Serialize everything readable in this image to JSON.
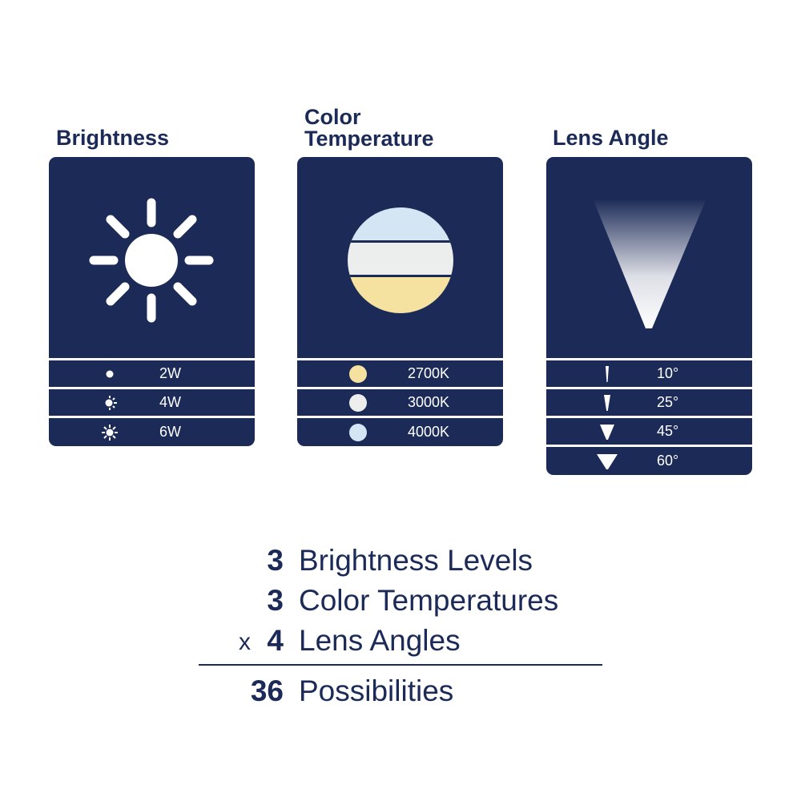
{
  "brightness": {
    "title": "Brightness",
    "icon": "sun-icon",
    "rows": [
      {
        "icon": "dot-icon",
        "label": "2W"
      },
      {
        "icon": "half-sun-icon",
        "label": "4W"
      },
      {
        "icon": "sun-icon",
        "label": "6W"
      }
    ]
  },
  "color_temperature": {
    "title_line1": "Color",
    "title_line2": "Temperature",
    "rows": [
      {
        "color": "#f5e2a0",
        "label": "2700K"
      },
      {
        "color": "#eceeee",
        "label": "3000K"
      },
      {
        "color": "#d4e6f4",
        "label": "4000K"
      }
    ]
  },
  "lens_angle": {
    "title": "Lens Angle",
    "rows": [
      {
        "label": "10°"
      },
      {
        "label": "25°"
      },
      {
        "label": "45°"
      },
      {
        "label": "60°"
      }
    ]
  },
  "summary": {
    "rows": [
      {
        "prefix": "",
        "number": "3",
        "text": "Brightness Levels"
      },
      {
        "prefix": "",
        "number": "3",
        "text": "Color Temperatures"
      },
      {
        "prefix": "x",
        "number": "4",
        "text": "Lens Angles"
      }
    ],
    "total": {
      "number": "36",
      "text": "Possibilities"
    }
  },
  "colors": {
    "panel": "#1b2a57",
    "text": "#1b2a57"
  }
}
